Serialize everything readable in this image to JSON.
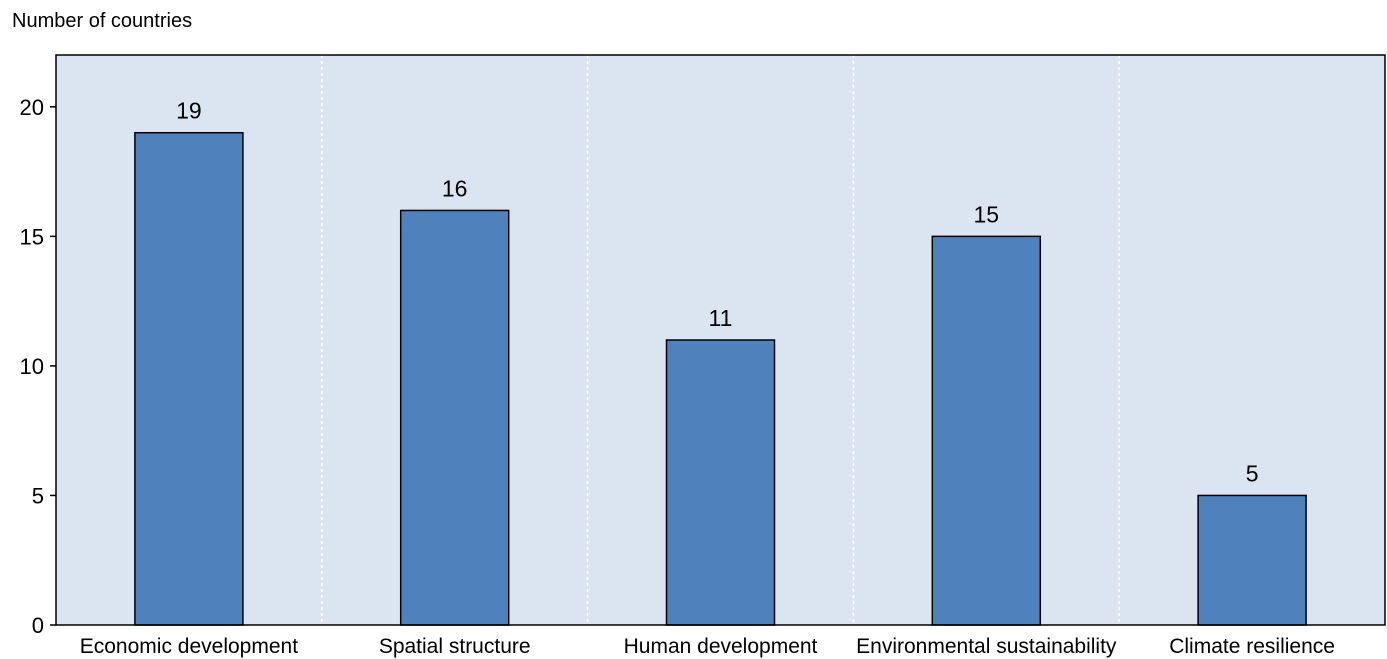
{
  "chart_data": {
    "type": "bar",
    "title": "",
    "xlabel": "",
    "ylabel": "Number of countries",
    "categories": [
      "Economic development",
      "Spatial structure",
      "Human development",
      "Environmental sustainability",
      "Climate resilience"
    ],
    "values": [
      19,
      16,
      11,
      15,
      5
    ],
    "data_labels": [
      "19",
      "16",
      "11",
      "15",
      "5"
    ],
    "ylim": [
      0,
      22
    ],
    "yticks": [
      0,
      5,
      10,
      15,
      20
    ],
    "ytick_labels": [
      "0",
      "5",
      "10",
      "15",
      "20"
    ],
    "grid": "vertical dashed separators between categories",
    "legend": "none",
    "colors": {
      "bar_fill": "#4f81bd",
      "bar_stroke": "#000000",
      "plot_background": "#dbe5f1",
      "plot_border": "#000000",
      "grid": "#ffffff"
    }
  }
}
